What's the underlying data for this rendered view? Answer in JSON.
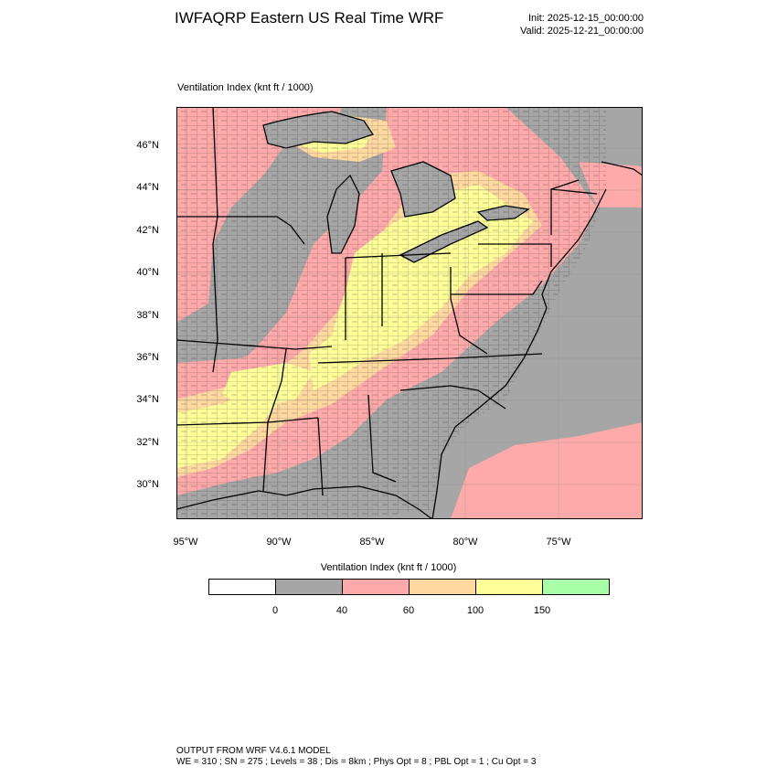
{
  "header": {
    "title": "IWFAQRP Eastern US Real Time WRF",
    "init": "Init: 2025-12-15_00:00:00",
    "valid": "Valid: 2025-12-21_00:00:00"
  },
  "plot": {
    "field_label": "Ventilation Index   (knt ft / 1000)"
  },
  "axes": {
    "lat_labels": [
      "46°N",
      "44°N",
      "42°N",
      "40°N",
      "38°N",
      "36°N",
      "34°N",
      "32°N",
      "30°N"
    ],
    "lon_labels": [
      "95°W",
      "90°W",
      "85°W",
      "80°W",
      "75°W"
    ]
  },
  "colorbar": {
    "title": "Ventilation Index  (knt ft / 1000)",
    "ticks": [
      "0",
      "40",
      "60",
      "100",
      "150"
    ],
    "colors": [
      "#ffffff",
      "#a6a6a6",
      "#ffaaaa",
      "#ffd9a0",
      "#ffff99",
      "#a8ffa8"
    ]
  },
  "map_colors": {
    "low": "#a6a6a6",
    "pink": "#ffaaaa",
    "orange": "#ffd9a0",
    "yellow": "#ffff99"
  },
  "footer": {
    "line1": "OUTPUT FROM WRF V4.6.1 MODEL",
    "line2": "WE = 310 ; SN = 275 ; Levels = 38 ; Dis = 8km ; Phys Opt = 8 ; PBL Opt = 1 ; Cu Opt = 3"
  }
}
